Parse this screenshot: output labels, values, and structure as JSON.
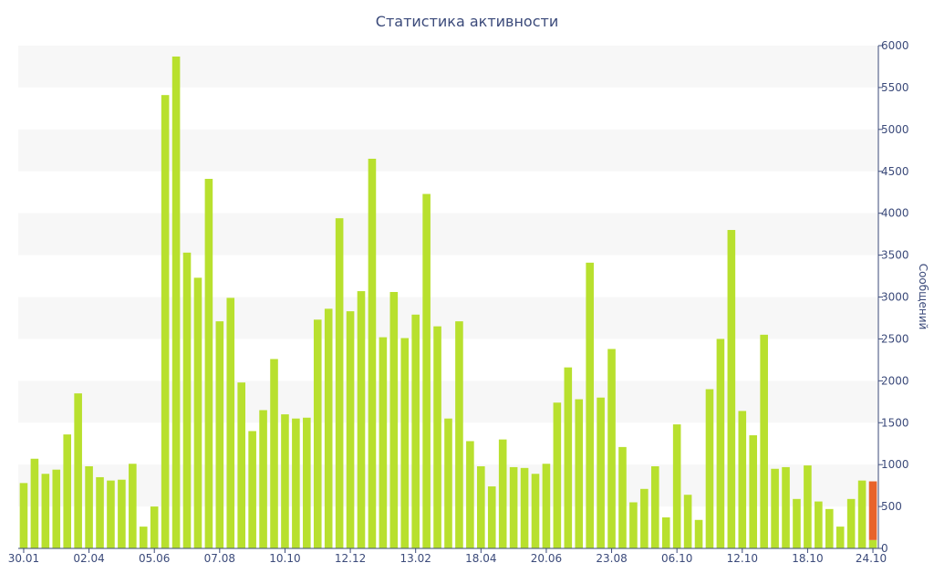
{
  "chart_data": {
    "type": "bar",
    "title": "Статистика активности",
    "ylabel": "Сообщений",
    "xlabel": "",
    "ylim": [
      0,
      6000
    ],
    "y_ticks": [
      0,
      500,
      1000,
      1500,
      2000,
      2500,
      3000,
      3500,
      4000,
      4500,
      5000,
      5500,
      6000
    ],
    "x_tick_labels": [
      {
        "index": 0,
        "label": "30.01"
      },
      {
        "index": 6,
        "label": "02.04"
      },
      {
        "index": 12,
        "label": "05.06"
      },
      {
        "index": 18,
        "label": "07.08"
      },
      {
        "index": 24,
        "label": "10.10"
      },
      {
        "index": 30,
        "label": "12.12"
      },
      {
        "index": 36,
        "label": "13.02"
      },
      {
        "index": 42,
        "label": "18.04"
      },
      {
        "index": 48,
        "label": "20.06"
      },
      {
        "index": 54,
        "label": "23.08"
      },
      {
        "index": 60,
        "label": "06.10"
      },
      {
        "index": 66,
        "label": "12.10"
      },
      {
        "index": 72,
        "label": "18.10"
      },
      {
        "index": 78,
        "label": "24.10"
      }
    ],
    "bar_color": "#b8e02e",
    "highlight_color": "#e8632b",
    "grid": "horizontal bands",
    "values": [
      780,
      1070,
      890,
      940,
      1360,
      1850,
      980,
      850,
      810,
      820,
      1010,
      260,
      500,
      5410,
      5870,
      3530,
      3230,
      4410,
      2710,
      2990,
      1980,
      1400,
      1650,
      2260,
      1600,
      1550,
      1560,
      2730,
      2860,
      3940,
      2830,
      3070,
      4650,
      2520,
      3060,
      2510,
      2790,
      4230,
      2650,
      1550,
      2710,
      1280,
      980,
      740,
      1300,
      970,
      960,
      890,
      1010,
      1740,
      2160,
      1780,
      3410,
      1800,
      2380,
      1210,
      550,
      710,
      980,
      370,
      1480,
      640,
      340,
      1900,
      2500,
      3800,
      1640,
      1350,
      2550,
      950,
      970,
      590,
      990,
      560,
      470,
      260,
      590,
      810,
      100
    ],
    "highlight_last": {
      "base": 100,
      "top": 800
    }
  }
}
